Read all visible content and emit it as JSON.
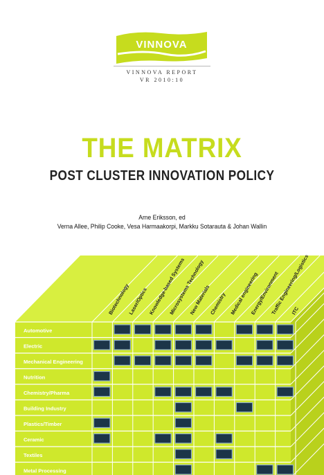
{
  "brand": {
    "logo_text": "VINNOVA"
  },
  "report": {
    "series": "VINNOVA REPORT",
    "number": "VR 2010:10"
  },
  "title": "THE MATRIX",
  "subtitle": "POST CLUSTER INNOVATION POLICY",
  "authors": {
    "line1": "Arne Eriksson, ed",
    "line2": "Verna Allee, Philip Cooke, Vesa Harmaakorpi, Markku Sotarauta & Johan Wallin"
  },
  "matrix": {
    "columns": [
      "Biotechnology",
      "Laser/Optics",
      "Knowledge-based Systems",
      "Microsystems Technology",
      "New Materials",
      "Chemistry",
      "Medical engineering",
      "Energy/Environment",
      "Traffic Engineering/Logistics",
      "ITC"
    ],
    "rows": [
      {
        "label": "Automotive",
        "cells": [
          1,
          2,
          3,
          4,
          5,
          7,
          8,
          9
        ]
      },
      {
        "label": "Electric",
        "cells": [
          0,
          1,
          3,
          4,
          5,
          6,
          8,
          9
        ]
      },
      {
        "label": "Mechanical Engineering",
        "cells": [
          1,
          2,
          3,
          4,
          5,
          7,
          8,
          9
        ]
      },
      {
        "label": "Nutrition",
        "cells": [
          0
        ]
      },
      {
        "label": "Chemistry/Pharma",
        "cells": [
          0,
          3,
          4,
          5,
          6,
          9
        ]
      },
      {
        "label": "Building Industry",
        "cells": [
          4,
          7
        ]
      },
      {
        "label": "Plastics/Timber",
        "cells": [
          0,
          4
        ]
      },
      {
        "label": "Ceramic",
        "cells": [
          0,
          3,
          4,
          6
        ]
      },
      {
        "label": "Textiles",
        "cells": [
          4,
          6
        ]
      },
      {
        "label": "Metal Processing",
        "cells": [
          4,
          8,
          9
        ]
      }
    ]
  },
  "colors": {
    "accent": "#c6dc1e",
    "matrix_front": "#cfe82c",
    "matrix_top": "#d8ef40",
    "matrix_side": "#b9d11c",
    "cell": "#1c3548",
    "white": "#ffffff"
  }
}
